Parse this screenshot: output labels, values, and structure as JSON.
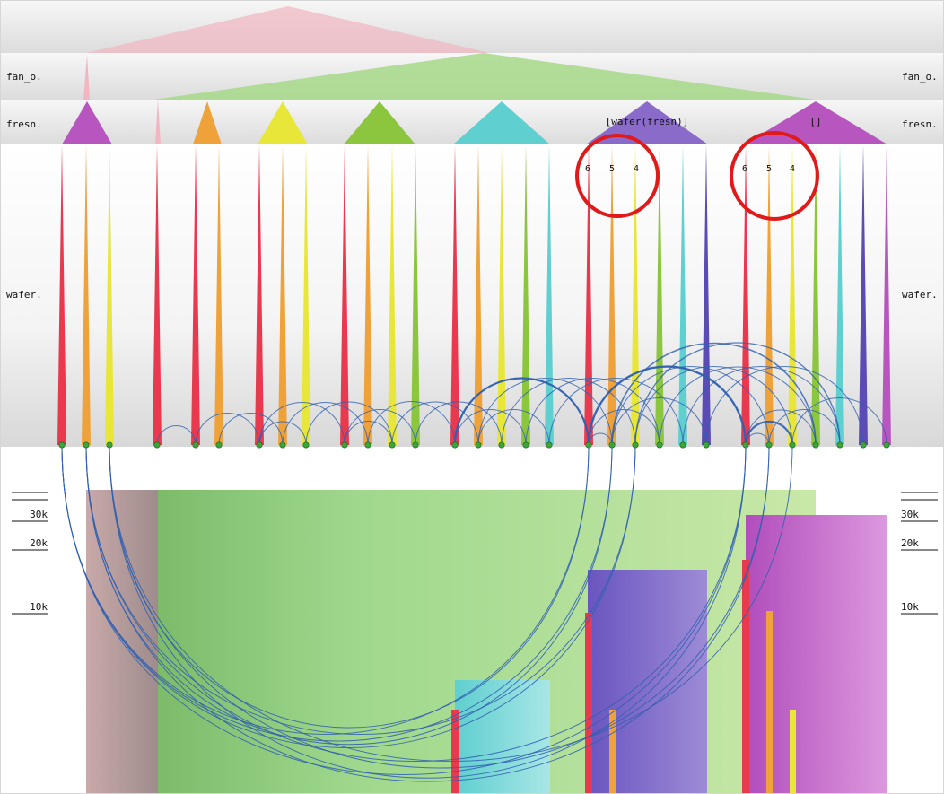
{
  "level_labels": {
    "fan_out": "fan_o.",
    "fresh": "fresn.",
    "wafer": "wafer."
  },
  "node_labels": {
    "purple_group": "[wafer(fresn)]",
    "magenta_group": "[]"
  },
  "highlight_numbers": {
    "left": [
      "6",
      "5",
      "4"
    ],
    "right": [
      "6",
      "5",
      "4"
    ]
  },
  "axis_ticks": [
    "30k",
    "20k",
    "10k"
  ],
  "colors": {
    "red": "#e8394e",
    "orange": "#f0a23a",
    "yellow": "#e9e63a",
    "green": "#8cc63f",
    "cyan": "#5fcfcf",
    "indigo": "#5b4bb5",
    "purple": "#8a6bc9",
    "magenta": "#b856c0",
    "pink": "#f2b6c2",
    "lightgreen": "#a6d98a",
    "arc": "#2f5fb0",
    "circle": "#e01a1a",
    "dot": "#3aa63a"
  }
}
